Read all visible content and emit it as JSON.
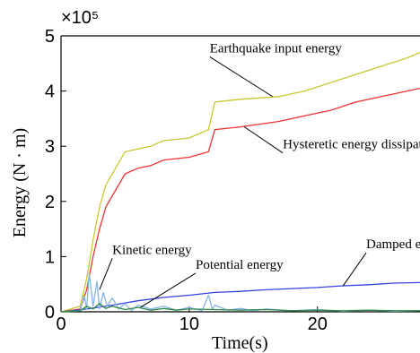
{
  "chart_data": {
    "type": "line",
    "title": "",
    "xlabel": "Time(s)",
    "ylabel": "Energy (N · m)",
    "y_multiplier": "×10⁵",
    "xlim": [
      0,
      28
    ],
    "ylim": [
      0,
      5
    ],
    "x_ticks": [
      "0",
      "10",
      "20"
    ],
    "y_ticks": [
      "0",
      "1",
      "2",
      "3",
      "4",
      "5"
    ],
    "grid": false,
    "legend": "none",
    "series": [
      {
        "name": "Earthquake input energy",
        "color": "#c8c832",
        "x": [
          0,
          1.5,
          2,
          2.5,
          3,
          3.5,
          4,
          5,
          6,
          7,
          8,
          10,
          11.5,
          12,
          14,
          17,
          19,
          21,
          23,
          25,
          27,
          28
        ],
        "y": [
          0,
          0.1,
          0.6,
          1.3,
          1.9,
          2.3,
          2.5,
          2.9,
          2.95,
          3.0,
          3.1,
          3.15,
          3.3,
          3.8,
          3.85,
          3.9,
          4.0,
          4.15,
          4.3,
          4.45,
          4.6,
          4.7
        ]
      },
      {
        "name": "Hysteretic energy dissipation",
        "color": "#ee3333",
        "x": [
          0,
          1.5,
          2,
          2.5,
          3,
          3.5,
          4,
          5,
          6,
          7,
          8,
          10,
          11.5,
          12,
          14,
          17,
          19,
          21,
          23,
          25,
          27,
          28
        ],
        "y": [
          0,
          0.05,
          0.4,
          1.0,
          1.5,
          1.9,
          2.1,
          2.5,
          2.6,
          2.65,
          2.75,
          2.8,
          2.9,
          3.3,
          3.35,
          3.45,
          3.55,
          3.65,
          3.8,
          3.9,
          4.0,
          4.05
        ]
      },
      {
        "name": "Damped energy dissipation",
        "color": "#3344dd",
        "x": [
          0,
          2,
          4,
          6,
          8,
          10,
          12,
          14,
          16,
          18,
          20,
          22,
          24,
          26,
          28
        ],
        "y": [
          0,
          0.05,
          0.12,
          0.2,
          0.26,
          0.3,
          0.35,
          0.37,
          0.4,
          0.42,
          0.44,
          0.47,
          0.49,
          0.52,
          0.53
        ]
      },
      {
        "name": "Kinetic energy",
        "color": "#88b4e8",
        "x": [
          0,
          1.5,
          1.8,
          2.0,
          2.2,
          2.5,
          2.8,
          3.0,
          3.3,
          3.6,
          4.0,
          4.5,
          5.0,
          5.5,
          6.0,
          7.0,
          8.0,
          9.0,
          10.0,
          11.0,
          11.5,
          11.8,
          12.0,
          13.0,
          14.0,
          15.0,
          16.0,
          18.0,
          20.0,
          22.0,
          24.0,
          26.0,
          28.0
        ],
        "y": [
          0,
          0.02,
          0.3,
          0.05,
          0.7,
          0.1,
          0.55,
          0.05,
          0.35,
          0.1,
          0.25,
          0.05,
          0.15,
          0.02,
          0.12,
          0.05,
          0.1,
          0.03,
          0.08,
          0.02,
          0.3,
          0.05,
          0.12,
          0.03,
          0.06,
          0.02,
          0.05,
          0.02,
          0.04,
          0.01,
          0.03,
          0.01,
          0.02
        ]
      },
      {
        "name": "Potential energy",
        "color": "#2f8a4a",
        "x": [
          0,
          1.5,
          2.0,
          2.5,
          3.0,
          3.5,
          4.0,
          5.0,
          6.0,
          7.0,
          8.0,
          9.0,
          10.0,
          12.0,
          14.0,
          16.0,
          18.0,
          20.0,
          22.0,
          24.0,
          26.0,
          28.0
        ],
        "y": [
          0,
          0.02,
          0.1,
          0.05,
          0.15,
          0.06,
          0.1,
          0.04,
          0.08,
          0.03,
          0.06,
          0.03,
          0.05,
          0.04,
          0.03,
          0.04,
          0.02,
          0.03,
          0.02,
          0.03,
          0.02,
          0.02
        ]
      }
    ],
    "annotations": [
      {
        "text": "Earthquake input energy",
        "series": "Earthquake input energy",
        "at_x": 16.5,
        "at_y": 3.9,
        "label_x": 11.6,
        "label_y": 4.7
      },
      {
        "text": "Hysteretic energy dissipation",
        "series": "Hysteretic energy dissipation",
        "at_x": 14.3,
        "at_y": 3.35,
        "label_x": 17.3,
        "label_y": 2.96
      },
      {
        "text": "Kinetic energy",
        "series": "Kinetic energy",
        "at_x": 3.0,
        "at_y": 0.4,
        "label_x": 4.0,
        "label_y": 1.05
      },
      {
        "text": "Potential energy",
        "series": "Potential energy",
        "at_x": 6.2,
        "at_y": 0.08,
        "label_x": 10.5,
        "label_y": 0.78
      },
      {
        "text": "Damped energy dissipation",
        "series": "Damped energy dissipation",
        "at_x": 22.0,
        "at_y": 0.47,
        "label_x": 23.8,
        "label_y": 1.15
      }
    ]
  }
}
